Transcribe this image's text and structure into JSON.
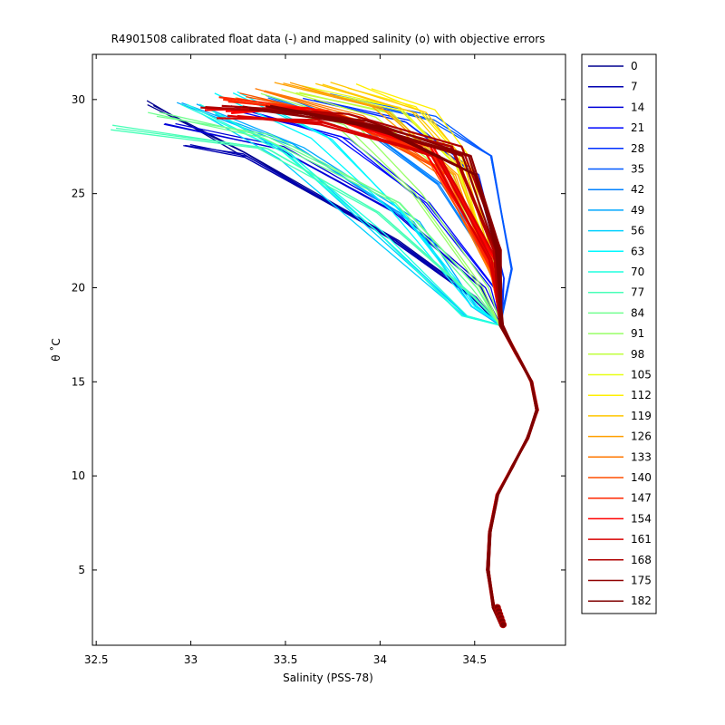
{
  "chart_data": {
    "type": "line",
    "title": "R4901508 calibrated float data (-) and mapped salinity (o) with objective errors",
    "xlabel": "Salinity (PSS-78)",
    "ylabel": "θ ˚C",
    "xlim": [
      32.48,
      34.98
    ],
    "ylim": [
      1.0,
      32.4
    ],
    "xticks": [
      "32.5",
      "33",
      "33.5",
      "34",
      "34.5"
    ],
    "yticks": [
      "5",
      "10",
      "15",
      "20",
      "25",
      "30"
    ],
    "grid": false,
    "legend_position": "outside-right",
    "legend": [
      {
        "label": "0",
        "color": "#00008f"
      },
      {
        "label": "7",
        "color": "#0000b0"
      },
      {
        "label": "14",
        "color": "#0000d8"
      },
      {
        "label": "21",
        "color": "#0008ff"
      },
      {
        "label": "28",
        "color": "#0030ff"
      },
      {
        "label": "35",
        "color": "#0058ff"
      },
      {
        "label": "42",
        "color": "#0080ff"
      },
      {
        "label": "49",
        "color": "#00a8ff"
      },
      {
        "label": "56",
        "color": "#00d0ff"
      },
      {
        "label": "63",
        "color": "#00f8ff"
      },
      {
        "label": "70",
        "color": "#20ffdf"
      },
      {
        "label": "77",
        "color": "#48ffb7"
      },
      {
        "label": "84",
        "color": "#70ff8f"
      },
      {
        "label": "91",
        "color": "#98ff67"
      },
      {
        "label": "98",
        "color": "#c0ff3f"
      },
      {
        "label": "105",
        "color": "#e8ff17"
      },
      {
        "label": "112",
        "color": "#ffef00"
      },
      {
        "label": "119",
        "color": "#ffc700"
      },
      {
        "label": "126",
        "color": "#ff9f00"
      },
      {
        "label": "133",
        "color": "#ff7700"
      },
      {
        "label": "140",
        "color": "#ff4f00"
      },
      {
        "label": "147",
        "color": "#ff2700"
      },
      {
        "label": "154",
        "color": "#ff0000"
      },
      {
        "label": "161",
        "color": "#d80000"
      },
      {
        "label": "168",
        "color": "#b00000"
      },
      {
        "label": "175",
        "color": "#8f0000"
      },
      {
        "label": "182",
        "color": "#800000"
      }
    ],
    "deep_profile": [
      [
        34.64,
        2.1
      ],
      [
        34.6,
        3.0
      ],
      [
        34.57,
        5.0
      ],
      [
        34.58,
        7.0
      ],
      [
        34.62,
        9.0
      ],
      [
        34.7,
        10.5
      ],
      [
        34.78,
        12.0
      ],
      [
        34.83,
        13.5
      ],
      [
        34.8,
        15.0
      ],
      [
        34.72,
        16.5
      ],
      [
        34.64,
        18.0
      ]
    ],
    "series": [
      {
        "name": "0",
        "color": "#00008f",
        "points": [
          [
            32.8,
            29.8
          ],
          [
            33.3,
            27.2
          ],
          [
            34.1,
            22.5
          ],
          [
            34.5,
            19.5
          ],
          [
            34.64,
            18.0
          ]
        ]
      },
      {
        "name": "7",
        "color": "#0000b0",
        "points": [
          [
            33.0,
            27.5
          ],
          [
            33.3,
            27.0
          ],
          [
            34.05,
            22.8
          ],
          [
            34.5,
            19.5
          ],
          [
            34.64,
            18.0
          ]
        ]
      },
      {
        "name": "14",
        "color": "#0000d8",
        "points": [
          [
            32.9,
            28.6
          ],
          [
            33.5,
            27.5
          ],
          [
            34.1,
            24.0
          ],
          [
            34.55,
            20.0
          ],
          [
            34.64,
            18.0
          ]
        ]
      },
      {
        "name": "21",
        "color": "#0008ff",
        "points": [
          [
            33.2,
            29.6
          ],
          [
            33.8,
            28.0
          ],
          [
            34.25,
            24.5
          ],
          [
            34.6,
            20.0
          ],
          [
            34.64,
            18.0
          ]
        ]
      },
      {
        "name": "28",
        "color": "#0030ff",
        "points": [
          [
            33.6,
            30.0
          ],
          [
            34.1,
            28.8
          ],
          [
            34.5,
            26.0
          ],
          [
            34.65,
            20.5
          ],
          [
            34.64,
            18.0
          ]
        ]
      },
      {
        "name": "35",
        "color": "#0058ff",
        "points": [
          [
            33.8,
            30.2
          ],
          [
            34.3,
            29.0
          ],
          [
            34.6,
            27.0
          ],
          [
            34.7,
            21.0
          ],
          [
            34.64,
            18.0
          ]
        ]
      },
      {
        "name": "42",
        "color": "#0080ff",
        "points": [
          [
            33.4,
            30.1
          ],
          [
            33.9,
            28.5
          ],
          [
            34.3,
            25.5
          ],
          [
            34.6,
            21.0
          ],
          [
            34.64,
            18.0
          ]
        ]
      },
      {
        "name": "49",
        "color": "#00a8ff",
        "points": [
          [
            33.0,
            29.9
          ],
          [
            33.6,
            27.5
          ],
          [
            34.2,
            23.5
          ],
          [
            34.5,
            19.0
          ],
          [
            34.64,
            18.0
          ]
        ]
      },
      {
        "name": "56",
        "color": "#00d0ff",
        "points": [
          [
            33.1,
            29.3
          ],
          [
            33.5,
            27.0
          ],
          [
            34.0,
            22.5
          ],
          [
            34.45,
            18.5
          ],
          [
            34.64,
            18.0
          ]
        ]
      },
      {
        "name": "63",
        "color": "#00f8ff",
        "points": [
          [
            33.2,
            30.3
          ],
          [
            33.7,
            28.0
          ],
          [
            34.1,
            24.0
          ],
          [
            34.5,
            19.0
          ],
          [
            34.64,
            18.0
          ]
        ]
      },
      {
        "name": "70",
        "color": "#20ffdf",
        "points": [
          [
            33.0,
            29.7
          ],
          [
            33.5,
            27.2
          ],
          [
            34.0,
            23.0
          ],
          [
            34.45,
            18.5
          ],
          [
            34.64,
            18.0
          ]
        ]
      },
      {
        "name": "77",
        "color": "#48ffb7",
        "points": [
          [
            32.6,
            28.5
          ],
          [
            33.4,
            27.5
          ],
          [
            34.0,
            24.0
          ],
          [
            34.5,
            19.5
          ],
          [
            34.64,
            18.0
          ]
        ]
      },
      {
        "name": "84",
        "color": "#70ff8f",
        "points": [
          [
            32.8,
            29.2
          ],
          [
            33.4,
            28.0
          ],
          [
            34.1,
            24.5
          ],
          [
            34.5,
            20.0
          ],
          [
            34.64,
            18.0
          ]
        ]
      },
      {
        "name": "91",
        "color": "#98ff67",
        "points": [
          [
            33.3,
            30.2
          ],
          [
            33.8,
            28.8
          ],
          [
            34.2,
            25.0
          ],
          [
            34.55,
            20.0
          ],
          [
            34.64,
            18.0
          ]
        ]
      },
      {
        "name": "98",
        "color": "#c0ff3f",
        "points": [
          [
            33.5,
            30.5
          ],
          [
            34.0,
            29.2
          ],
          [
            34.35,
            26.0
          ],
          [
            34.6,
            20.5
          ],
          [
            34.64,
            18.0
          ]
        ]
      },
      {
        "name": "105",
        "color": "#e8ff17",
        "points": [
          [
            33.6,
            30.6
          ],
          [
            34.1,
            29.5
          ],
          [
            34.4,
            26.5
          ],
          [
            34.6,
            21.0
          ],
          [
            34.64,
            18.0
          ]
        ]
      },
      {
        "name": "112",
        "color": "#ffef00",
        "points": [
          [
            33.9,
            30.7
          ],
          [
            34.25,
            29.5
          ],
          [
            34.45,
            27.0
          ],
          [
            34.6,
            21.0
          ],
          [
            34.64,
            18.0
          ]
        ]
      },
      {
        "name": "119",
        "color": "#ffc700",
        "points": [
          [
            33.7,
            30.9
          ],
          [
            34.2,
            29.3
          ],
          [
            34.45,
            26.5
          ],
          [
            34.6,
            21.0
          ],
          [
            34.64,
            18.0
          ]
        ]
      },
      {
        "name": "126",
        "color": "#ff9f00",
        "points": [
          [
            33.5,
            31.0
          ],
          [
            34.0,
            29.5
          ],
          [
            34.4,
            26.0
          ],
          [
            34.6,
            20.5
          ],
          [
            34.64,
            18.0
          ]
        ]
      },
      {
        "name": "133",
        "color": "#ff7700",
        "points": [
          [
            33.4,
            30.5
          ],
          [
            33.9,
            29.0
          ],
          [
            34.35,
            26.0
          ],
          [
            34.6,
            20.5
          ],
          [
            34.64,
            18.0
          ]
        ]
      },
      {
        "name": "140",
        "color": "#ff4f00",
        "points": [
          [
            33.3,
            30.2
          ],
          [
            33.8,
            29.0
          ],
          [
            34.3,
            26.5
          ],
          [
            34.6,
            21.0
          ],
          [
            34.64,
            18.0
          ]
        ]
      },
      {
        "name": "147",
        "color": "#ff2700",
        "points": [
          [
            33.2,
            30.0
          ],
          [
            33.7,
            29.3
          ],
          [
            34.3,
            27.0
          ],
          [
            34.6,
            21.0
          ],
          [
            34.64,
            18.0
          ]
        ]
      },
      {
        "name": "154",
        "color": "#ff0000",
        "points": [
          [
            33.15,
            29.3
          ],
          [
            33.6,
            29.5
          ],
          [
            34.25,
            27.5
          ],
          [
            34.6,
            21.5
          ],
          [
            34.64,
            18.0
          ]
        ]
      },
      {
        "name": "161",
        "color": "#d80000",
        "points": [
          [
            33.2,
            29.0
          ],
          [
            33.7,
            28.8
          ],
          [
            34.3,
            27.0
          ],
          [
            34.6,
            21.5
          ],
          [
            34.64,
            18.0
          ]
        ]
      },
      {
        "name": "168",
        "color": "#b00000",
        "points": [
          [
            33.1,
            29.6
          ],
          [
            33.8,
            29.2
          ],
          [
            34.4,
            27.5
          ],
          [
            34.62,
            22.0
          ],
          [
            34.64,
            18.0
          ]
        ]
      },
      {
        "name": "175",
        "color": "#8f0000",
        "points": [
          [
            33.3,
            29.5
          ],
          [
            33.9,
            28.8
          ],
          [
            34.45,
            27.0
          ],
          [
            34.62,
            22.0
          ],
          [
            34.64,
            18.0
          ]
        ]
      },
      {
        "name": "182",
        "color": "#800000",
        "points": [
          [
            33.4,
            29.7
          ],
          [
            34.0,
            28.6
          ],
          [
            34.5,
            26.0
          ],
          [
            34.62,
            22.0
          ],
          [
            34.64,
            18.0
          ]
        ]
      }
    ]
  }
}
